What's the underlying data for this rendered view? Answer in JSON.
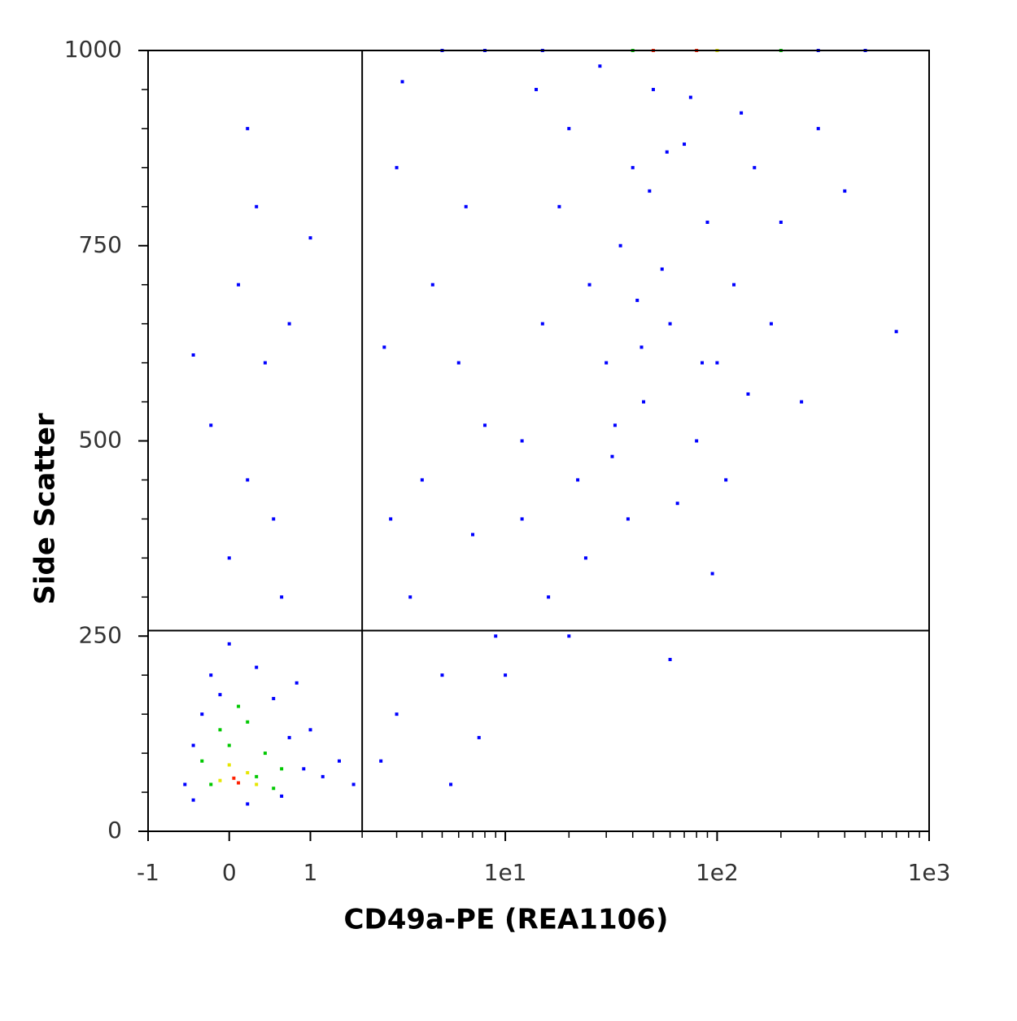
{
  "chart_data": {
    "type": "scatter",
    "x_label": "CD49a-PE (REA1106)",
    "y_label": "Side Scatter",
    "xscale": "asinh",
    "xlim": [
      -1,
      1000
    ],
    "ylim": [
      0,
      1000
    ],
    "xticks": [
      -1,
      0,
      1,
      {
        "value": 10,
        "label": "1e1"
      },
      {
        "value": 100,
        "label": "1e2"
      },
      {
        "value": 1000,
        "label": "1e3"
      }
    ],
    "xminorticks": [
      2,
      3,
      4,
      5,
      6,
      7,
      8,
      9,
      20,
      30,
      40,
      50,
      60,
      70,
      80,
      90,
      200,
      300,
      400,
      500,
      600,
      700,
      800,
      900
    ],
    "yticks": [
      0,
      250,
      500,
      750,
      1000
    ],
    "yminorticks": [
      50,
      100,
      150,
      200,
      300,
      350,
      400,
      450,
      550,
      600,
      650,
      700,
      800,
      850,
      900,
      950
    ],
    "gates": {
      "x": 2,
      "y": 257
    },
    "series": [
      {
        "color": "#0000ff",
        "x": [
          -0.5,
          -0.4,
          -0.3,
          -0.2,
          0,
          0.3,
          0.5,
          0.7,
          0.9,
          1.2,
          1.5,
          1.8,
          0.6,
          -0.4,
          0.2,
          1.0,
          0.8,
          -0.1,
          0,
          0.2,
          0.4,
          0.1,
          0.3,
          -0.2,
          0.5,
          0.2,
          0.7,
          -0.4,
          0.6,
          1,
          2.5,
          3,
          3.5,
          4,
          5,
          6,
          7,
          8,
          4.5,
          3,
          2.6,
          5.5,
          9,
          2.8,
          6.5,
          3.2,
          7.5,
          12,
          15,
          18,
          20,
          25,
          30,
          35,
          40,
          45,
          50,
          55,
          60,
          70,
          80,
          90,
          100,
          120,
          150,
          180,
          12,
          14,
          22,
          28,
          33,
          38,
          42,
          48,
          65,
          75,
          85,
          110,
          130,
          200,
          250,
          300,
          16,
          24,
          32,
          44,
          58,
          95,
          140,
          20,
          10,
          60,
          400,
          700,
          5,
          8,
          15,
          300,
          500
        ],
        "y": [
          60,
          110,
          150,
          200,
          240,
          210,
          170,
          120,
          80,
          70,
          90,
          60,
          45,
          40,
          35,
          130,
          190,
          175,
          350,
          450,
          600,
          700,
          800,
          520,
          400,
          900,
          650,
          610,
          300,
          760,
          90,
          150,
          300,
          450,
          200,
          600,
          380,
          520,
          700,
          850,
          620,
          60,
          250,
          400,
          800,
          960,
          120,
          500,
          650,
          800,
          900,
          700,
          600,
          750,
          850,
          550,
          950,
          720,
          650,
          880,
          500,
          780,
          600,
          700,
          850,
          650,
          400,
          950,
          450,
          980,
          520,
          400,
          680,
          820,
          420,
          940,
          600,
          450,
          920,
          780,
          550,
          900,
          300,
          350,
          480,
          620,
          870,
          330,
          560,
          250,
          200,
          220,
          820,
          640,
          1000,
          1000,
          1000,
          1000,
          1000
        ]
      },
      {
        "color": "#00c800",
        "x": [
          -0.1,
          0.2,
          0.4,
          -0.3,
          0.6,
          0,
          0.3,
          -0.2,
          0.5,
          0.1,
          40,
          200
        ],
        "y": [
          130,
          140,
          100,
          90,
          80,
          110,
          70,
          60,
          55,
          160,
          1000,
          1000
        ]
      },
      {
        "color": "#e6e600",
        "x": [
          0,
          0.2,
          -0.1,
          0.3,
          100
        ],
        "y": [
          85,
          75,
          65,
          60,
          1000
        ]
      },
      {
        "color": "#ff2000",
        "x": [
          0.05,
          0.1,
          50,
          80
        ],
        "y": [
          68,
          62,
          1000,
          1000
        ]
      }
    ]
  }
}
